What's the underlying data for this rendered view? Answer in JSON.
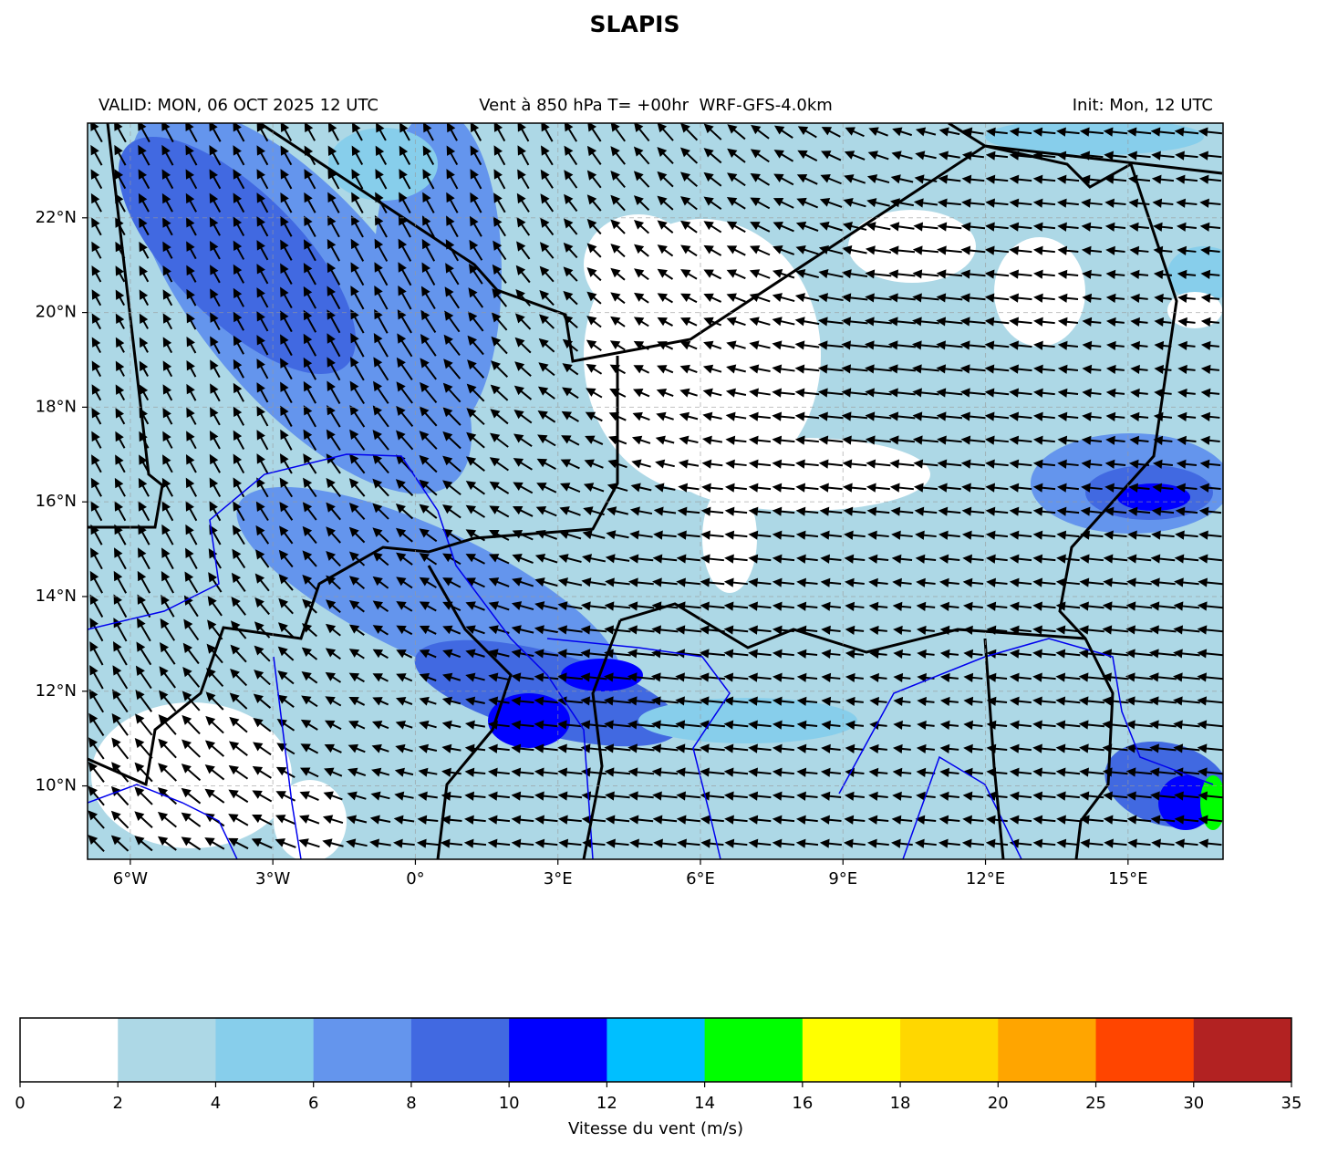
{
  "header": {
    "title": "SLAPIS",
    "valid": "VALID: MON, 06 OCT 2025 12 UTC",
    "subtitle": "Vent à 850 hPa T= +00hr  WRF-GFS-4.0km",
    "init": "Init: Mon, 12 UTC"
  },
  "map": {
    "xlim": [
      -6.9,
      17
    ],
    "ylim": [
      8.45,
      24
    ],
    "xticks": [
      {
        "value": -6,
        "label": "6°W"
      },
      {
        "value": -3,
        "label": "3°W"
      },
      {
        "value": 0,
        "label": "0°"
      },
      {
        "value": 3,
        "label": "3°E"
      },
      {
        "value": 6,
        "label": "6°E"
      },
      {
        "value": 9,
        "label": "9°E"
      },
      {
        "value": 12,
        "label": "12°E"
      },
      {
        "value": 15,
        "label": "15°E"
      }
    ],
    "yticks": [
      {
        "value": 10,
        "label": "10°N"
      },
      {
        "value": 12,
        "label": "12°N"
      },
      {
        "value": 14,
        "label": "14°N"
      },
      {
        "value": 16,
        "label": "16°N"
      },
      {
        "value": 18,
        "label": "18°N"
      },
      {
        "value": 20,
        "label": "20°N"
      },
      {
        "value": 22,
        "label": "22°N"
      }
    ],
    "grid": true
  },
  "colorbar": {
    "label": "Vitesse du vent (m/s)",
    "levels": [
      0,
      2,
      4,
      6,
      8,
      10,
      12,
      14,
      16,
      18,
      20,
      25,
      30,
      35
    ],
    "colors": [
      "#ffffff",
      "#add8e6",
      "#87ceeb",
      "#6495ed",
      "#4169e1",
      "#0000ff",
      "#00bfff",
      "#00ff00",
      "#ffff00",
      "#ffd700",
      "#ffa500",
      "#ff4500",
      "#b22222"
    ]
  }
}
